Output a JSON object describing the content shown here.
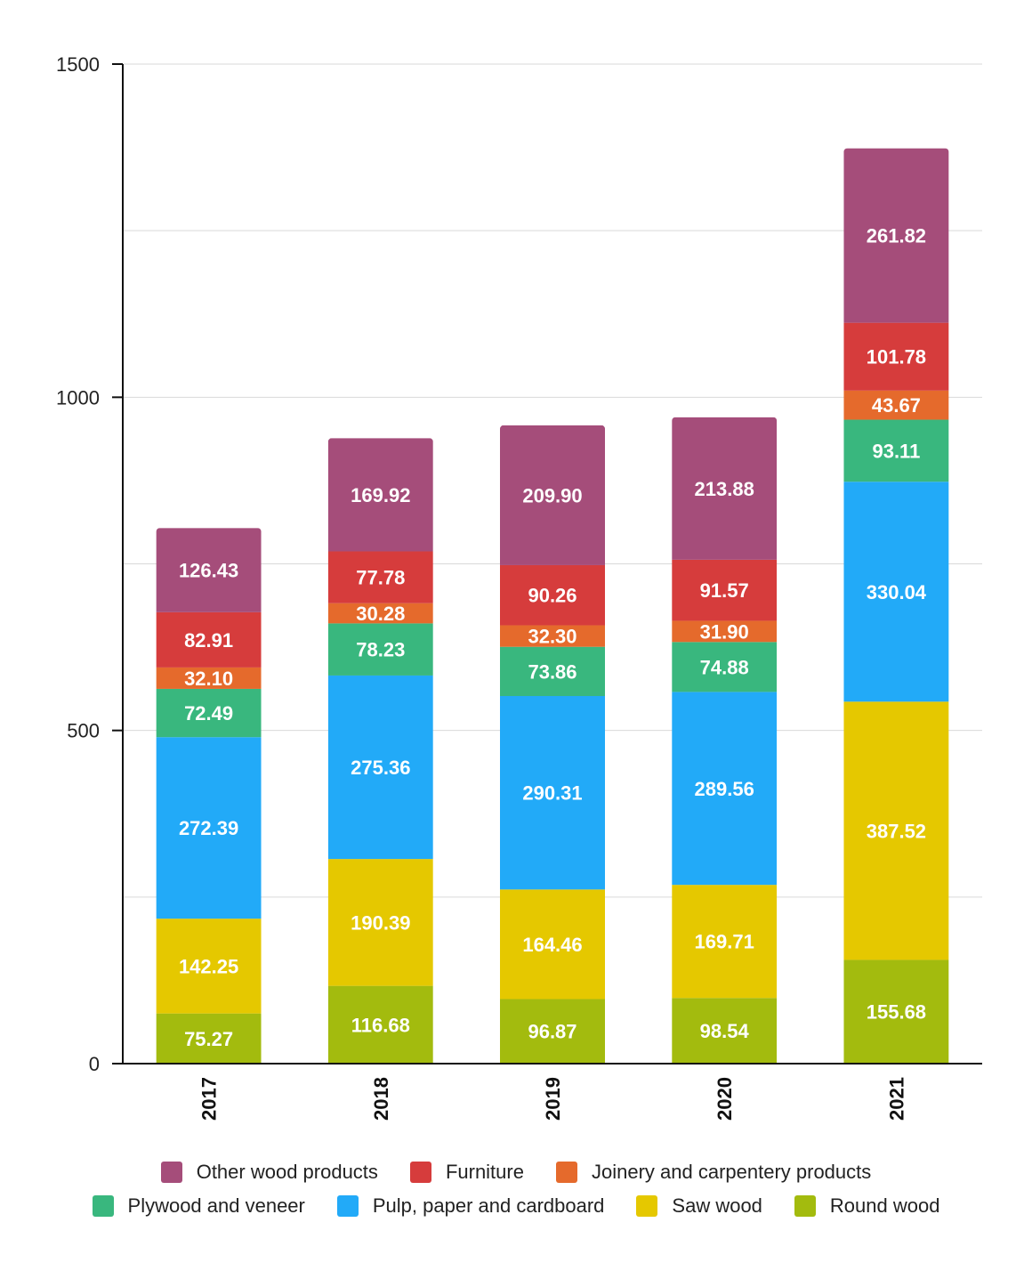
{
  "chart_data": {
    "type": "bar",
    "stacked": true,
    "categories": [
      "2017",
      "2018",
      "2019",
      "2020",
      "2021"
    ],
    "ylim": [
      0,
      1500
    ],
    "yticks": [
      0,
      500,
      1000,
      1500
    ],
    "grid": true,
    "legend_position": "bottom",
    "series": [
      {
        "name": "Round wood",
        "color": "#a3bb0e",
        "values": [
          75.27,
          116.68,
          96.87,
          98.54,
          155.68
        ]
      },
      {
        "name": "Saw wood",
        "color": "#e5c800",
        "values": [
          142.25,
          190.39,
          164.46,
          169.71,
          387.52
        ]
      },
      {
        "name": "Pulp, paper and cardboard",
        "color": "#22aaf8",
        "values": [
          272.39,
          275.36,
          290.31,
          289.56,
          330.04
        ]
      },
      {
        "name": "Plywood and veneer",
        "color": "#39b77e",
        "values": [
          72.49,
          78.23,
          73.86,
          74.88,
          93.11
        ]
      },
      {
        "name": "Joinery and carpentery products",
        "color": "#e56a2c",
        "values": [
          32.1,
          30.28,
          32.3,
          31.9,
          43.67
        ]
      },
      {
        "name": "Furniture",
        "color": "#d63c3c",
        "values": [
          82.91,
          77.78,
          90.26,
          91.57,
          101.78
        ]
      },
      {
        "name": "Other wood products",
        "color": "#a54d7a",
        "values": [
          126.43,
          169.92,
          209.9,
          213.88,
          261.82
        ]
      }
    ],
    "legend_rows": [
      [
        "Other wood products",
        "Furniture",
        "Joinery and carpentery products"
      ],
      [
        "Plywood and veneer",
        "Pulp, paper and cardboard",
        "Saw wood",
        "Round wood"
      ]
    ]
  }
}
